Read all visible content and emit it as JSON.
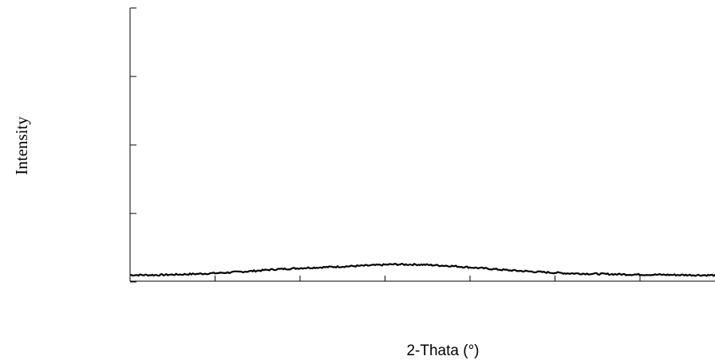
{
  "chart_data": {
    "type": "line",
    "xlabel": "2-Thata (°)",
    "ylabel": "Intensity",
    "x_tick_count": 7,
    "y_tick_count": 4,
    "tick_labels_shown": false,
    "grid": false,
    "ylim": [
      0,
      1
    ],
    "series": [
      {
        "x": [
          0,
          0.05,
          0.1,
          0.15,
          0.2,
          0.25,
          0.3,
          0.35,
          0.4,
          0.45,
          0.5,
          0.55,
          0.6,
          0.65,
          0.7,
          0.75,
          0.8,
          0.85,
          0.9,
          0.95,
          1.0
        ],
        "values": [
          0.005,
          0.005,
          0.008,
          0.012,
          0.018,
          0.026,
          0.031,
          0.035,
          0.039,
          0.044,
          0.043,
          0.038,
          0.03,
          0.022,
          0.016,
          0.011,
          0.009,
          0.007,
          0.006,
          0.005,
          0.004
        ]
      }
    ]
  }
}
